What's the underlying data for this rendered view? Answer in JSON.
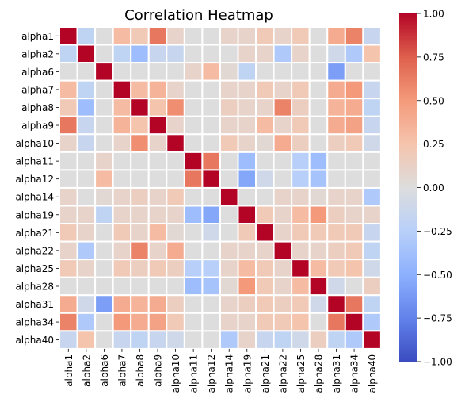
{
  "chart_data": {
    "type": "heatmap",
    "title": "Correlation Heatmap",
    "xlabel": "",
    "ylabel": "",
    "labels": [
      "alpha1",
      "alpha2",
      "alpha6",
      "alpha7",
      "alpha8",
      "alpha9",
      "alpha10",
      "alpha11",
      "alpha12",
      "alpha14",
      "alpha19",
      "alpha21",
      "alpha22",
      "alpha25",
      "alpha28",
      "alpha31",
      "alpha34",
      "alpha40"
    ],
    "matrix": [
      [
        1.0,
        -0.2,
        0.0,
        0.3,
        0.2,
        0.65,
        0.1,
        0.0,
        0.0,
        0.1,
        0.1,
        0.2,
        0.1,
        0.2,
        0.0,
        0.4,
        0.6,
        -0.15
      ],
      [
        -0.2,
        1.0,
        0.0,
        -0.2,
        -0.4,
        -0.15,
        -0.15,
        0.0,
        0.0,
        0.0,
        0.1,
        0.1,
        -0.3,
        0.1,
        0.0,
        -0.1,
        -0.3,
        0.25
      ],
      [
        0.0,
        0.0,
        1.0,
        0.0,
        0.0,
        0.0,
        0.0,
        0.1,
        0.3,
        0.05,
        -0.2,
        0.0,
        0.0,
        0.0,
        0.0,
        -0.6,
        0.0,
        0.0
      ],
      [
        0.3,
        -0.2,
        0.0,
        1.0,
        0.3,
        0.35,
        0.1,
        0.0,
        0.0,
        0.1,
        0.1,
        0.2,
        0.1,
        0.2,
        0.0,
        0.4,
        0.5,
        -0.15
      ],
      [
        0.2,
        -0.4,
        0.0,
        0.3,
        1.0,
        0.25,
        0.55,
        0.0,
        0.0,
        0.15,
        0.1,
        0.1,
        0.6,
        0.15,
        0.0,
        0.35,
        0.4,
        -0.2
      ],
      [
        0.65,
        -0.15,
        0.0,
        0.35,
        0.25,
        1.0,
        0.1,
        0.0,
        0.0,
        0.1,
        0.1,
        0.3,
        0.1,
        0.2,
        0.0,
        0.4,
        0.45,
        -0.15
      ],
      [
        0.1,
        -0.15,
        0.0,
        0.1,
        0.55,
        0.1,
        1.0,
        0.0,
        0.0,
        0.2,
        0.1,
        0.05,
        0.4,
        0.15,
        0.0,
        0.15,
        0.2,
        -0.1
      ],
      [
        0.0,
        0.0,
        0.1,
        0.0,
        0.0,
        0.0,
        0.0,
        1.0,
        0.65,
        0.0,
        -0.4,
        0.0,
        0.0,
        -0.25,
        -0.4,
        0.0,
        0.0,
        0.0
      ],
      [
        0.0,
        0.0,
        0.3,
        0.0,
        0.0,
        0.0,
        0.0,
        0.65,
        1.0,
        0.0,
        -0.55,
        -0.1,
        0.0,
        -0.25,
        -0.35,
        0.0,
        0.0,
        0.0
      ],
      [
        0.1,
        0.0,
        0.05,
        0.1,
        0.15,
        0.1,
        0.2,
        0.0,
        0.0,
        1.0,
        0.0,
        0.0,
        0.1,
        0.1,
        0.05,
        0.1,
        0.1,
        -0.3
      ],
      [
        0.1,
        0.1,
        -0.2,
        0.1,
        0.1,
        0.1,
        0.1,
        -0.4,
        -0.55,
        0.0,
        1.0,
        0.2,
        0.1,
        0.3,
        0.5,
        0.15,
        0.1,
        0.1
      ],
      [
        0.2,
        0.1,
        0.0,
        0.2,
        0.1,
        0.3,
        0.05,
        0.0,
        -0.1,
        0.0,
        0.2,
        1.0,
        0.1,
        0.2,
        0.2,
        0.2,
        0.2,
        -0.15
      ],
      [
        0.1,
        -0.3,
        0.0,
        0.1,
        0.6,
        0.1,
        0.4,
        0.0,
        0.0,
        0.1,
        0.1,
        0.1,
        1.0,
        0.1,
        0.1,
        0.15,
        0.2,
        -0.2
      ],
      [
        0.2,
        0.1,
        0.0,
        0.2,
        0.15,
        0.2,
        0.15,
        -0.25,
        -0.25,
        0.1,
        0.3,
        0.2,
        0.1,
        1.0,
        0.3,
        0.2,
        0.25,
        -0.1
      ],
      [
        0.0,
        0.0,
        0.0,
        0.0,
        0.0,
        0.0,
        0.0,
        -0.4,
        -0.35,
        0.05,
        0.5,
        0.2,
        0.1,
        0.3,
        1.0,
        -0.1,
        0.0,
        0.15
      ],
      [
        0.4,
        -0.1,
        -0.6,
        0.4,
        0.35,
        0.4,
        0.15,
        0.0,
        0.0,
        0.1,
        0.15,
        0.2,
        0.15,
        0.2,
        -0.1,
        1.0,
        0.65,
        -0.2
      ],
      [
        0.6,
        -0.3,
        0.0,
        0.5,
        0.4,
        0.45,
        0.2,
        0.0,
        0.0,
        0.1,
        0.1,
        0.2,
        0.2,
        0.25,
        0.0,
        0.65,
        1.0,
        -0.3
      ],
      [
        -0.15,
        0.25,
        0.0,
        -0.15,
        -0.2,
        -0.15,
        -0.1,
        0.0,
        0.0,
        -0.3,
        0.1,
        -0.15,
        -0.2,
        -0.1,
        0.15,
        -0.2,
        -0.3,
        1.0
      ]
    ],
    "vmin": -1.0,
    "vmax": 1.0,
    "colormap": "coolwarm",
    "colorbar_ticks": [
      "1.00",
      "0.75",
      "0.50",
      "0.25",
      "0.00",
      "−0.25",
      "−0.50",
      "−0.75",
      "−1.00"
    ],
    "colorbar_tick_values": [
      1.0,
      0.75,
      0.5,
      0.25,
      0.0,
      -0.25,
      -0.5,
      -0.75,
      -1.0
    ],
    "cell_border_color": "#ffffff",
    "grid": false,
    "legend": "colorbar-right"
  }
}
